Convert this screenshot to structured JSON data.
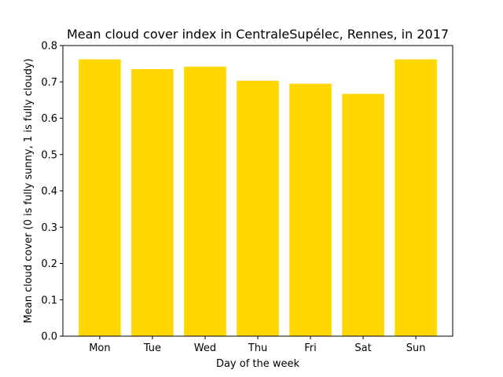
{
  "chart_data": {
    "type": "bar",
    "title": "Mean cloud cover index in CentraleSupélec, Rennes, in 2017",
    "xlabel": "Day of the week",
    "ylabel": "Mean cloud cover (0 is fully sunny, 1 is fully cloudy)",
    "categories": [
      "Mon",
      "Tue",
      "Wed",
      "Thu",
      "Fri",
      "Sat",
      "Sun"
    ],
    "values": [
      0.762,
      0.735,
      0.742,
      0.703,
      0.695,
      0.667,
      0.762
    ],
    "ylim": [
      0,
      0.8
    ],
    "yticks": [
      "0.0",
      "0.1",
      "0.2",
      "0.3",
      "0.4",
      "0.5",
      "0.6",
      "0.7",
      "0.8"
    ],
    "bar_color": "#FFD700",
    "grid": false,
    "legend": null
  }
}
